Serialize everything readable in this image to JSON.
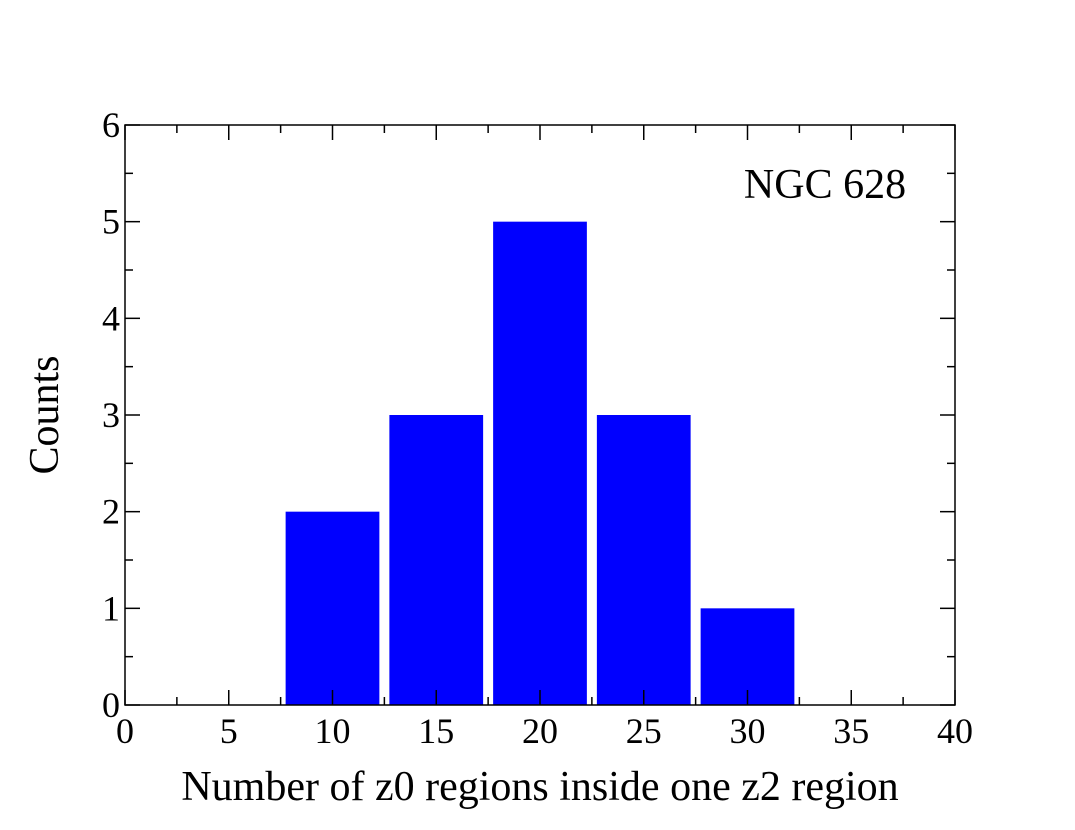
{
  "chart_data": {
    "type": "histogram",
    "annotation": "NGC 628",
    "x_label": "Number of z0 regions inside one z2 region",
    "y_label": "Counts",
    "bins": [
      7.5,
      12.5,
      17.5,
      22.5,
      27.5,
      32.5
    ],
    "counts": [
      2,
      3,
      5,
      3,
      1
    ],
    "color": "#0000ff",
    "xlim": [
      0,
      40
    ],
    "xticks": [
      0,
      5,
      10,
      15,
      20,
      25,
      30,
      35,
      40
    ],
    "ylim": [
      0,
      6
    ],
    "yticks": [
      0,
      1,
      2,
      3,
      4,
      5,
      6
    ]
  }
}
